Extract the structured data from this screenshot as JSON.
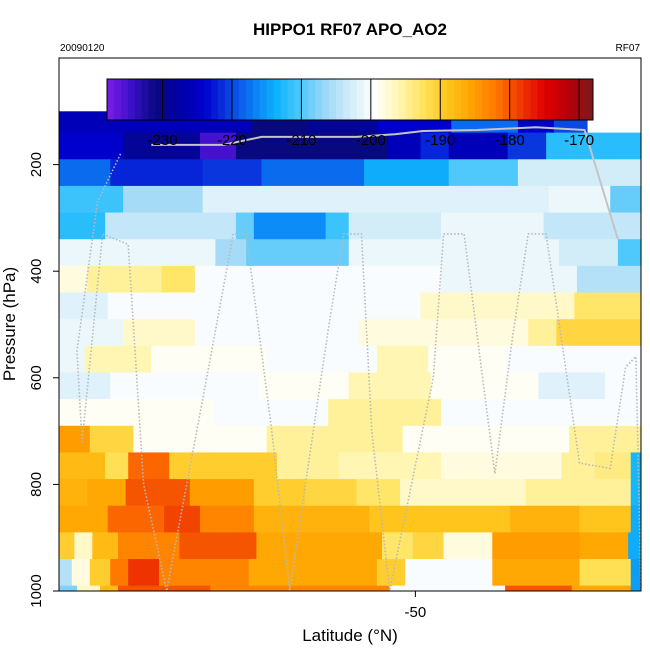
{
  "chart_data": {
    "type": "heatmap",
    "title": "HIPPO1 RF07 APO_AO2",
    "top_left_label": "20090120",
    "top_right_label": "RF07",
    "xlabel": "Latitude (°N)",
    "ylabel": "Pressure (hPa)",
    "xlim": [
      -63.9,
      -41.2
    ],
    "ylim": [
      1000,
      0
    ],
    "x_ticks": [
      {
        "value": -50,
        "label": "-50"
      }
    ],
    "y_ticks": [
      {
        "value": 200,
        "label": "200"
      },
      {
        "value": 400,
        "label": "400"
      },
      {
        "value": 600,
        "label": "600"
      },
      {
        "value": 800,
        "label": "800"
      },
      {
        "value": 1000,
        "label": "1000"
      }
    ],
    "colorbar": {
      "min": -238,
      "max": -168,
      "ticks": [
        {
          "value": -230,
          "label": "-230"
        },
        {
          "value": -220,
          "label": "-220"
        },
        {
          "value": -210,
          "label": "-210"
        },
        {
          "value": -200,
          "label": "-200"
        },
        {
          "value": -190,
          "label": "-190"
        },
        {
          "value": -180,
          "label": "-180"
        },
        {
          "value": -170,
          "label": "-170"
        }
      ],
      "colors": [
        "#7d1de8",
        "#3b10c9",
        "#09097f",
        "#0000a8",
        "#0000cd",
        "#0a3fe0",
        "#0b7cf5",
        "#0eb4fb",
        "#4fc9fb",
        "#9ed8f7",
        "#d2ecf8",
        "#ffffff",
        "#fff6b3",
        "#ffe35c",
        "#ffc51c",
        "#ffa300",
        "#ff7800",
        "#f03a00",
        "#e00000",
        "#b8000a",
        "#7a1a1a"
      ]
    },
    "rows": [
      {
        "p0": 100,
        "p1": 140,
        "segments": [
          {
            "x0": -63.9,
            "x1": -56.4,
            "v": -226
          },
          {
            "x0": -56.4,
            "x1": -54.2,
            "v": -231
          },
          {
            "x0": -54.2,
            "x1": -51.5,
            "v": -229
          },
          {
            "x0": -51.5,
            "x1": -48.6,
            "v": -224
          },
          {
            "x0": -48.6,
            "x1": -46.0,
            "v": -218
          },
          {
            "x0": -46.0,
            "x1": -44.6,
            "v": -224
          },
          {
            "x0": -44.6,
            "x1": -43.3,
            "v": -220
          }
        ]
      },
      {
        "p0": 140,
        "p1": 190,
        "segments": [
          {
            "x0": -63.9,
            "x1": -61.4,
            "v": -224
          },
          {
            "x0": -61.4,
            "x1": -58.4,
            "v": -229
          },
          {
            "x0": -58.4,
            "x1": -57.0,
            "v": -235
          },
          {
            "x0": -57.0,
            "x1": -51.1,
            "v": -231
          },
          {
            "x0": -51.1,
            "x1": -49.8,
            "v": -226
          },
          {
            "x0": -49.8,
            "x1": -48.7,
            "v": -222
          },
          {
            "x0": -48.7,
            "x1": -46.4,
            "v": -226
          },
          {
            "x0": -46.4,
            "x1": -44.9,
            "v": -221
          },
          {
            "x0": -44.9,
            "x1": -41.2,
            "v": -212
          }
        ]
      },
      {
        "p0": 190,
        "p1": 240,
        "segments": [
          {
            "x0": -63.9,
            "x1": -61.9,
            "v": -218
          },
          {
            "x0": -61.9,
            "x1": -58.3,
            "v": -222
          },
          {
            "x0": -58.3,
            "x1": -56.0,
            "v": -221
          },
          {
            "x0": -56.0,
            "x1": -52.0,
            "v": -218
          },
          {
            "x0": -52.0,
            "x1": -48.7,
            "v": -214
          },
          {
            "x0": -48.7,
            "x1": -46.0,
            "v": -210
          },
          {
            "x0": -46.0,
            "x1": -41.2,
            "v": -203
          }
        ]
      },
      {
        "p0": 240,
        "p1": 290,
        "segments": [
          {
            "x0": -63.9,
            "x1": -61.4,
            "v": -211
          },
          {
            "x0": -61.4,
            "x1": -58.3,
            "v": -206
          },
          {
            "x0": -58.3,
            "x1": -44.8,
            "v": -202
          },
          {
            "x0": -44.8,
            "x1": -42.4,
            "v": -201
          },
          {
            "x0": -42.4,
            "x1": -41.2,
            "v": -209
          }
        ]
      },
      {
        "p0": 290,
        "p1": 340,
        "segments": [
          {
            "x0": -63.9,
            "x1": -62.1,
            "v": -212
          },
          {
            "x0": -62.1,
            "x1": -57.0,
            "v": -204
          },
          {
            "x0": -57.0,
            "x1": -56.3,
            "v": -209
          },
          {
            "x0": -56.3,
            "x1": -53.5,
            "v": -216
          },
          {
            "x0": -53.5,
            "x1": -52.6,
            "v": -211
          },
          {
            "x0": -52.6,
            "x1": -49.0,
            "v": -203
          },
          {
            "x0": -49.0,
            "x1": -45.0,
            "v": -201
          },
          {
            "x0": -45.0,
            "x1": -41.2,
            "v": -204
          }
        ]
      },
      {
        "p0": 340,
        "p1": 390,
        "segments": [
          {
            "x0": -63.9,
            "x1": -57.8,
            "v": -201
          },
          {
            "x0": -57.8,
            "x1": -56.6,
            "v": -206
          },
          {
            "x0": -56.6,
            "x1": -52.6,
            "v": -209
          },
          {
            "x0": -52.6,
            "x1": -44.4,
            "v": -201
          },
          {
            "x0": -44.4,
            "x1": -42.1,
            "v": -203
          },
          {
            "x0": -42.1,
            "x1": -41.2,
            "v": -210
          }
        ]
      },
      {
        "p0": 390,
        "p1": 440,
        "segments": [
          {
            "x0": -63.9,
            "x1": -62.8,
            "v": -198
          },
          {
            "x0": -62.8,
            "x1": -59.9,
            "v": -195
          },
          {
            "x0": -59.9,
            "x1": -58.6,
            "v": -193
          },
          {
            "x0": -58.6,
            "x1": -49.0,
            "v": -200
          },
          {
            "x0": -49.0,
            "x1": -43.7,
            "v": -201
          },
          {
            "x0": -43.7,
            "x1": -41.2,
            "v": -205
          }
        ]
      },
      {
        "p0": 440,
        "p1": 490,
        "segments": [
          {
            "x0": -63.9,
            "x1": -62.0,
            "v": -202
          },
          {
            "x0": -62.0,
            "x1": -49.8,
            "v": -200
          },
          {
            "x0": -49.8,
            "x1": -47.5,
            "v": -197
          },
          {
            "x0": -47.5,
            "x1": -43.8,
            "v": -197
          },
          {
            "x0": -43.8,
            "x1": -41.2,
            "v": -193
          }
        ]
      },
      {
        "p0": 490,
        "p1": 540,
        "segments": [
          {
            "x0": -63.9,
            "x1": -61.4,
            "v": -201
          },
          {
            "x0": -61.4,
            "x1": -58.6,
            "v": -197
          },
          {
            "x0": -58.6,
            "x1": -52.2,
            "v": -200
          },
          {
            "x0": -52.2,
            "x1": -45.6,
            "v": -198
          },
          {
            "x0": -45.6,
            "x1": -44.5,
            "v": -195
          },
          {
            "x0": -44.5,
            "x1": -41.2,
            "v": -191
          }
        ]
      },
      {
        "p0": 540,
        "p1": 590,
        "segments": [
          {
            "x0": -63.9,
            "x1": -62.9,
            "v": -201
          },
          {
            "x0": -62.9,
            "x1": -60.3,
            "v": -196
          },
          {
            "x0": -60.3,
            "x1": -55.8,
            "v": -199
          },
          {
            "x0": -55.8,
            "x1": -51.5,
            "v": -200
          },
          {
            "x0": -51.5,
            "x1": -49.5,
            "v": -196
          },
          {
            "x0": -49.5,
            "x1": -46.5,
            "v": -199
          },
          {
            "x0": -46.5,
            "x1": -41.2,
            "v": -200
          }
        ]
      },
      {
        "p0": 590,
        "p1": 640,
        "segments": [
          {
            "x0": -63.9,
            "x1": -61.9,
            "v": -202
          },
          {
            "x0": -61.9,
            "x1": -56.1,
            "v": -200
          },
          {
            "x0": -56.1,
            "x1": -52.6,
            "v": -199
          },
          {
            "x0": -52.6,
            "x1": -49.4,
            "v": -196
          },
          {
            "x0": -49.4,
            "x1": -45.2,
            "v": -199
          },
          {
            "x0": -45.2,
            "x1": -42.6,
            "v": -202
          },
          {
            "x0": -42.6,
            "x1": -41.2,
            "v": -200
          }
        ]
      },
      {
        "p0": 640,
        "p1": 690,
        "segments": [
          {
            "x0": -63.9,
            "x1": -57.9,
            "v": -199
          },
          {
            "x0": -57.9,
            "x1": -53.4,
            "v": -200
          },
          {
            "x0": -53.4,
            "x1": -49.0,
            "v": -195
          },
          {
            "x0": -49.0,
            "x1": -44.0,
            "v": -200
          },
          {
            "x0": -44.0,
            "x1": -41.2,
            "v": -200
          }
        ]
      },
      {
        "p0": 690,
        "p1": 740,
        "segments": [
          {
            "x0": -63.9,
            "x1": -62.7,
            "v": -185
          },
          {
            "x0": -62.7,
            "x1": -61.0,
            "v": -191
          },
          {
            "x0": -61.0,
            "x1": -55.8,
            "v": -199
          },
          {
            "x0": -55.8,
            "x1": -50.5,
            "v": -195
          },
          {
            "x0": -50.5,
            "x1": -44.0,
            "v": -199
          },
          {
            "x0": -44.0,
            "x1": -41.2,
            "v": -195
          }
        ]
      },
      {
        "p0": 740,
        "p1": 790,
        "segments": [
          {
            "x0": -63.9,
            "x1": -62.1,
            "v": -188
          },
          {
            "x0": -62.1,
            "x1": -61.2,
            "v": -192
          },
          {
            "x0": -61.2,
            "x1": -59.6,
            "v": -181
          },
          {
            "x0": -59.6,
            "x1": -55.4,
            "v": -190
          },
          {
            "x0": -55.4,
            "x1": -53.0,
            "v": -195
          },
          {
            "x0": -53.0,
            "x1": -49.0,
            "v": -196
          },
          {
            "x0": -49.0,
            "x1": -44.3,
            "v": -198
          },
          {
            "x0": -44.3,
            "x1": -43.0,
            "v": -195
          },
          {
            "x0": -43.0,
            "x1": -41.6,
            "v": -194
          },
          {
            "x0": -41.6,
            "x1": -41.2,
            "v": -213
          }
        ]
      },
      {
        "p0": 790,
        "p1": 840,
        "segments": [
          {
            "x0": -63.9,
            "x1": -62.8,
            "v": -187
          },
          {
            "x0": -62.8,
            "x1": -61.3,
            "v": -186
          },
          {
            "x0": -61.3,
            "x1": -58.8,
            "v": -180
          },
          {
            "x0": -58.8,
            "x1": -56.3,
            "v": -185
          },
          {
            "x0": -56.3,
            "x1": -54.3,
            "v": -190
          },
          {
            "x0": -54.3,
            "x1": -52.3,
            "v": -191
          },
          {
            "x0": -52.3,
            "x1": -50.6,
            "v": -193
          },
          {
            "x0": -50.6,
            "x1": -45.7,
            "v": -197
          },
          {
            "x0": -45.7,
            "x1": -41.6,
            "v": -195
          },
          {
            "x0": -41.6,
            "x1": -41.2,
            "v": -213
          }
        ]
      },
      {
        "p0": 840,
        "p1": 890,
        "segments": [
          {
            "x0": -63.9,
            "x1": -62.0,
            "v": -186
          },
          {
            "x0": -62.0,
            "x1": -59.8,
            "v": -181
          },
          {
            "x0": -59.8,
            "x1": -58.4,
            "v": -179
          },
          {
            "x0": -58.4,
            "x1": -56.3,
            "v": -183
          },
          {
            "x0": -56.3,
            "x1": -51.8,
            "v": -187
          },
          {
            "x0": -51.8,
            "x1": -46.3,
            "v": -189
          },
          {
            "x0": -46.3,
            "x1": -43.6,
            "v": -187
          },
          {
            "x0": -43.6,
            "x1": -41.6,
            "v": -189
          },
          {
            "x0": -41.6,
            "x1": -41.2,
            "v": -214
          }
        ]
      },
      {
        "p0": 890,
        "p1": 940,
        "segments": [
          {
            "x0": -63.9,
            "x1": -63.3,
            "v": -190
          },
          {
            "x0": -63.3,
            "x1": -62.6,
            "v": -197
          },
          {
            "x0": -62.6,
            "x1": -61.6,
            "v": -188
          },
          {
            "x0": -61.6,
            "x1": -59.2,
            "v": -183
          },
          {
            "x0": -59.2,
            "x1": -56.2,
            "v": -180
          },
          {
            "x0": -56.2,
            "x1": -51.3,
            "v": -186
          },
          {
            "x0": -51.3,
            "x1": -50.1,
            "v": -193
          },
          {
            "x0": -50.1,
            "x1": -48.9,
            "v": -191
          },
          {
            "x0": -48.9,
            "x1": -47.0,
            "v": -198
          },
          {
            "x0": -47.0,
            "x1": -43.6,
            "v": -185
          },
          {
            "x0": -43.6,
            "x1": -41.7,
            "v": -186
          },
          {
            "x0": -41.7,
            "x1": -41.2,
            "v": -214
          }
        ]
      },
      {
        "p0": 940,
        "p1": 990,
        "segments": [
          {
            "x0": -63.9,
            "x1": -63.4,
            "v": -205
          },
          {
            "x0": -63.4,
            "x1": -62.7,
            "v": -198
          },
          {
            "x0": -62.7,
            "x1": -61.9,
            "v": -190
          },
          {
            "x0": -61.9,
            "x1": -61.2,
            "v": -182
          },
          {
            "x0": -61.2,
            "x1": -60.0,
            "v": -178
          },
          {
            "x0": -60.0,
            "x1": -56.5,
            "v": -183
          },
          {
            "x0": -56.5,
            "x1": -51.5,
            "v": -186
          },
          {
            "x0": -51.5,
            "x1": -50.4,
            "v": -190
          },
          {
            "x0": -50.4,
            "x1": -47.0,
            "v": -200
          },
          {
            "x0": -47.0,
            "x1": -43.6,
            "v": -186
          },
          {
            "x0": -43.6,
            "x1": -41.6,
            "v": -192
          },
          {
            "x0": -41.6,
            "x1": -41.2,
            "v": -215
          }
        ]
      },
      {
        "p0": 990,
        "p1": 1040,
        "segments": [
          {
            "x0": -63.9,
            "x1": -63.2,
            "v": -208
          },
          {
            "x0": -63.2,
            "x1": -62.3,
            "v": -197
          },
          {
            "x0": -62.3,
            "x1": -61.6,
            "v": -188
          },
          {
            "x0": -61.6,
            "x1": -58.0,
            "v": -180
          },
          {
            "x0": -58.0,
            "x1": -51.0,
            "v": -183
          },
          {
            "x0": -51.0,
            "x1": -49.5,
            "v": -200
          },
          {
            "x0": -49.5,
            "x1": -46.5,
            "v": -200
          },
          {
            "x0": -46.5,
            "x1": -43.9,
            "v": -180
          },
          {
            "x0": -43.9,
            "x1": -41.6,
            "v": -186
          },
          {
            "x0": -41.6,
            "x1": -41.2,
            "v": -215
          }
        ]
      }
    ],
    "flight_track": [
      [
        -61.5,
        180
      ],
      [
        -62.4,
        270
      ],
      [
        -63.2,
        550
      ],
      [
        -63.0,
        720
      ],
      [
        -62.2,
        330
      ],
      [
        -61.2,
        350
      ],
      [
        -60.6,
        800
      ],
      [
        -59.7,
        1000
      ],
      [
        -58.1,
        590
      ],
      [
        -57.1,
        330
      ],
      [
        -56.6,
        330
      ],
      [
        -55.6,
        700
      ],
      [
        -54.9,
        1000
      ],
      [
        -53.4,
        510
      ],
      [
        -52.8,
        330
      ],
      [
        -52.1,
        330
      ],
      [
        -51.7,
        700
      ],
      [
        -51.0,
        1000
      ],
      [
        -49.3,
        600
      ],
      [
        -48.9,
        330
      ],
      [
        -48.1,
        330
      ],
      [
        -46.9,
        780
      ],
      [
        -46.2,
        520
      ],
      [
        -45.6,
        330
      ],
      [
        -44.9,
        330
      ],
      [
        -43.6,
        760
      ],
      [
        -42.4,
        770
      ],
      [
        -41.8,
        580
      ],
      [
        -41.4,
        560
      ],
      [
        -41.2,
        1000
      ]
    ],
    "upper_track": [
      [
        -60.3,
        163
      ],
      [
        -57.5,
        163
      ],
      [
        -56.0,
        148
      ],
      [
        -52.3,
        148
      ],
      [
        -50.8,
        143
      ],
      [
        -49.7,
        137
      ],
      [
        -47.6,
        135
      ],
      [
        -45.3,
        130
      ],
      [
        -43.4,
        135
      ],
      [
        -42.1,
        340
      ]
    ]
  }
}
